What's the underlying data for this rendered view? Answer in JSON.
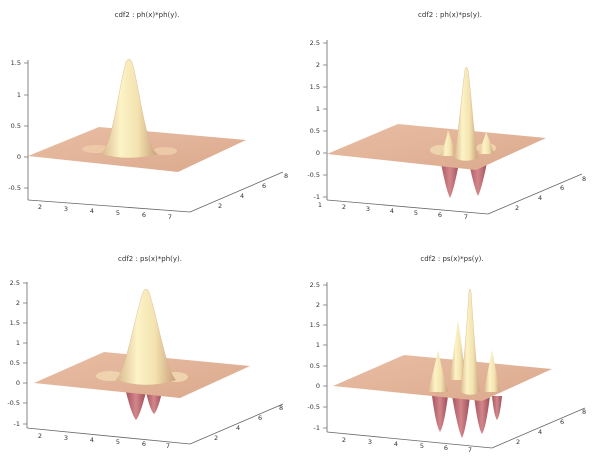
{
  "chart_data": [
    {
      "type": "surface",
      "title": "cdf2 : ph(x)*ph(y).",
      "zlim": [
        -0.5,
        1.5
      ],
      "z_ticks": [
        "1.5",
        "1",
        "0.5",
        "0",
        "-0.5"
      ],
      "x_ticks": [
        "2",
        "3",
        "4",
        "5",
        "6",
        "7"
      ],
      "y_ticks": [
        "2",
        "4",
        "6",
        "8"
      ],
      "peak": 1.5,
      "negative_lobes": false
    },
    {
      "type": "surface",
      "title": "cdf2 : ph(x)*ps(y).",
      "zlim": [
        -1,
        2.5
      ],
      "z_ticks": [
        "2.5",
        "2",
        "1.5",
        "1",
        "0.5",
        "0",
        "-0.5",
        "-1"
      ],
      "x_ticks": [
        "1",
        "2",
        "3",
        "4",
        "5",
        "6",
        "7"
      ],
      "y_ticks": [
        "2",
        "4",
        "6",
        "8"
      ],
      "peak": 2.0,
      "negative_lobes": true
    },
    {
      "type": "surface",
      "title": "cdf2 : ps(x)*ph(y).",
      "zlim": [
        -1,
        2.5
      ],
      "z_ticks": [
        "2.5",
        "2",
        "1.5",
        "1",
        "0.5",
        "0",
        "-0.5",
        "-1"
      ],
      "x_ticks": [
        "2",
        "3",
        "4",
        "5",
        "6",
        "7"
      ],
      "y_ticks": [
        "2",
        "4",
        "6",
        "8"
      ],
      "peak": 2.0,
      "negative_lobes": true
    },
    {
      "type": "surface",
      "title": "cdf2 : ps(x)*ps(y).",
      "zlim": [
        -1,
        2.5
      ],
      "z_ticks": [
        "2.5",
        "2",
        "1.5",
        "1",
        "0.5",
        "0",
        "-0.5",
        "-1"
      ],
      "x_ticks": [
        "2",
        "3",
        "4",
        "5",
        "6",
        "7"
      ],
      "y_ticks": [
        "2",
        "4",
        "6",
        "8"
      ],
      "peak": 2.5,
      "negative_lobes": true
    }
  ],
  "colors": {
    "plane": "#e4b49a",
    "plane_shade": "#d5a387",
    "peak_light": "#fcf3c6",
    "peak_mid": "#efdca7",
    "peak_shadow": "#cfa783",
    "negative": "#c7767a",
    "negative_dark": "#a85560"
  }
}
